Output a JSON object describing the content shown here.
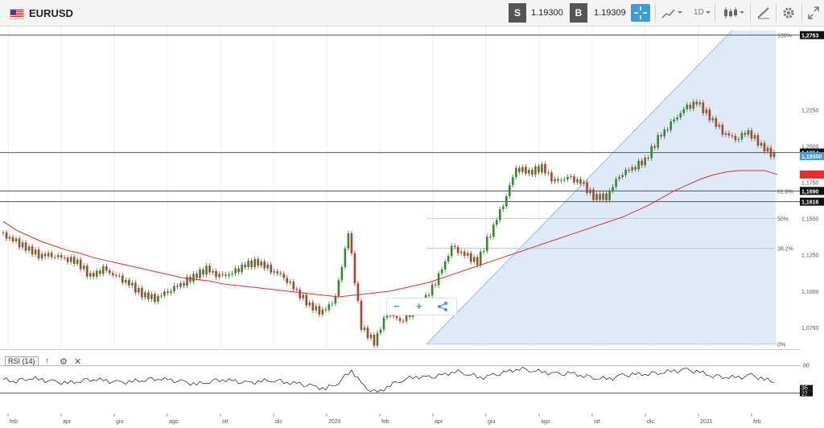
{
  "toolbar": {
    "symbol": "EURUSD",
    "sell_label": "S",
    "sell_price": "1.19300",
    "buy_label": "B",
    "buy_price": "1.19309",
    "timeframe": "1D",
    "icons": [
      "flag-us-eu-icon",
      "crosshair-icon",
      "chart-type-icon",
      "candles-icon",
      "draw-icon",
      "settings-icon",
      "fullscreen-icon"
    ]
  },
  "price_axis": {
    "ticks": [
      "1,2250",
      "1,2000",
      "1,1750",
      "1,1500",
      "1,1250",
      "1,1000",
      "1,0750"
    ],
    "badges": [
      {
        "text": "1,2763",
        "style": "black"
      },
      {
        "text": "1,1954",
        "style": "black"
      },
      {
        "text": "1,19300",
        "style": "blue"
      },
      {
        "text": "1,1803",
        "style": "red"
      },
      {
        "text": "1,1690",
        "style": "black"
      },
      {
        "text": "1,1616",
        "style": "black"
      }
    ]
  },
  "fib_labels": [
    "100%",
    "61.8%",
    "50%",
    "38.2%",
    "0%"
  ],
  "rsi": {
    "label": "RSI (14)",
    "axis_ticks": [
      "80"
    ],
    "badges": [
      "35",
      "27"
    ]
  },
  "date_axis": [
    "feb",
    "apr",
    "giu",
    "ago",
    "ott",
    "dic",
    "2020",
    "feb",
    "apr",
    "giu",
    "ago",
    "ott",
    "dic",
    "2021",
    "feb"
  ],
  "zoom": {
    "minus": "−",
    "plus": "+"
  },
  "colors": {
    "accent": "#3f9bd9",
    "up": "#2e8b2e",
    "down": "#c0392b",
    "ma": "#e03030",
    "fib_fill": "#d8e6f6"
  },
  "chart_data": {
    "type": "line",
    "series": [
      {
        "values": [
          1.14,
          1.135,
          1.13,
          1.125,
          1.125,
          1.123,
          1.12,
          1.11,
          1.115,
          1.11,
          1.105,
          1.098,
          1.095,
          1.1,
          1.105,
          1.11,
          1.115,
          1.11,
          1.112,
          1.118,
          1.12,
          1.115,
          1.11,
          1.1,
          1.09,
          1.085,
          1.095,
          1.14,
          1.075,
          1.065,
          1.085,
          1.08,
          1.085,
          1.095,
          1.11,
          1.13,
          1.125,
          1.12,
          1.14,
          1.16,
          1.185,
          1.182,
          1.185,
          1.175,
          1.178,
          1.175,
          1.165,
          1.165,
          1.18,
          1.185,
          1.19,
          1.205,
          1.215,
          1.225,
          1.23,
          1.22,
          1.21,
          1.205,
          1.21,
          1.2,
          1.193
        ]
      },
      {
        "values": [
          1.148,
          1.142,
          1.138,
          1.134,
          1.131,
          1.128,
          1.126,
          1.123,
          1.121,
          1.119,
          1.117,
          1.115,
          1.113,
          1.111,
          1.109,
          1.108,
          1.107,
          1.105,
          1.104,
          1.103,
          1.102,
          1.101,
          1.1,
          1.099,
          1.098,
          1.097,
          1.096,
          1.097,
          1.098,
          1.099,
          1.1,
          1.102,
          1.104,
          1.106,
          1.109,
          1.112,
          1.115,
          1.118,
          1.121,
          1.124,
          1.127,
          1.13,
          1.133,
          1.136,
          1.139,
          1.142,
          1.145,
          1.148,
          1.151,
          1.155,
          1.159,
          1.164,
          1.169,
          1.173,
          1.177,
          1.18,
          1.182,
          1.183,
          1.183,
          1.183,
          1.1803
        ]
      }
    ],
    "rsi": [
      55,
      52,
      58,
      54,
      50,
      48,
      53,
      56,
      52,
      49,
      51,
      55,
      57,
      53,
      50,
      46,
      52,
      55,
      51,
      48,
      52,
      54,
      50,
      46,
      42,
      38,
      50,
      72,
      40,
      30,
      45,
      55,
      60,
      58,
      62,
      70,
      66,
      58,
      62,
      68,
      75,
      72,
      68,
      64,
      66,
      62,
      58,
      56,
      62,
      64,
      66,
      68,
      70,
      72,
      68,
      62,
      60,
      58,
      62,
      55,
      50
    ],
    "ylim": [
      1.065,
      1.28
    ],
    "fib_levels": [
      {
        "label": "100%",
        "value": 1.2763
      },
      {
        "label": "61.8%",
        "value": 1.169
      },
      {
        "label": "50%",
        "value": 1.15
      },
      {
        "label": "38.2%",
        "value": 1.1295
      },
      {
        "label": "0%",
        "value": 1.0635
      }
    ],
    "horizontal_lines": [
      1.2763,
      1.1954,
      1.169,
      1.1616
    ]
  }
}
